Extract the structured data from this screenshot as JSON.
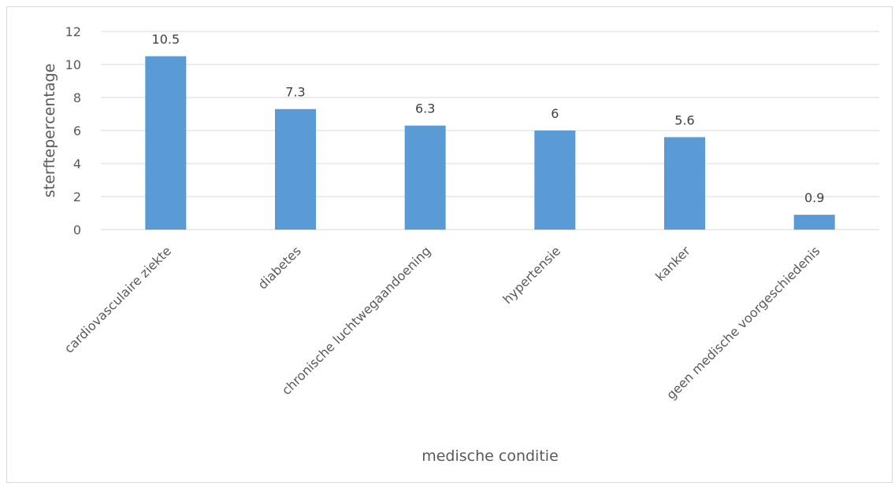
{
  "chart_data": {
    "type": "bar",
    "title": "",
    "xlabel": "medische conditie",
    "ylabel": "sterftepercentage",
    "categories": [
      "cardiovasculaire ziekte",
      "diabetes",
      "chronische luchtwegaandoening",
      "hypertensie",
      "kanker",
      "geen medische voorgeschiedenis"
    ],
    "values": [
      10.5,
      7.3,
      6.3,
      6,
      5.6,
      0.9
    ],
    "data_labels": [
      "10.5",
      "7.3",
      "6.3",
      "6",
      "5.6",
      "0.9"
    ],
    "ylim": [
      0,
      12
    ],
    "yticks": [
      0,
      2,
      4,
      6,
      8,
      10,
      12
    ],
    "grid": true,
    "legend": "none",
    "bar_color": "#5b9bd5",
    "grid_color": "#d9d9d9"
  }
}
